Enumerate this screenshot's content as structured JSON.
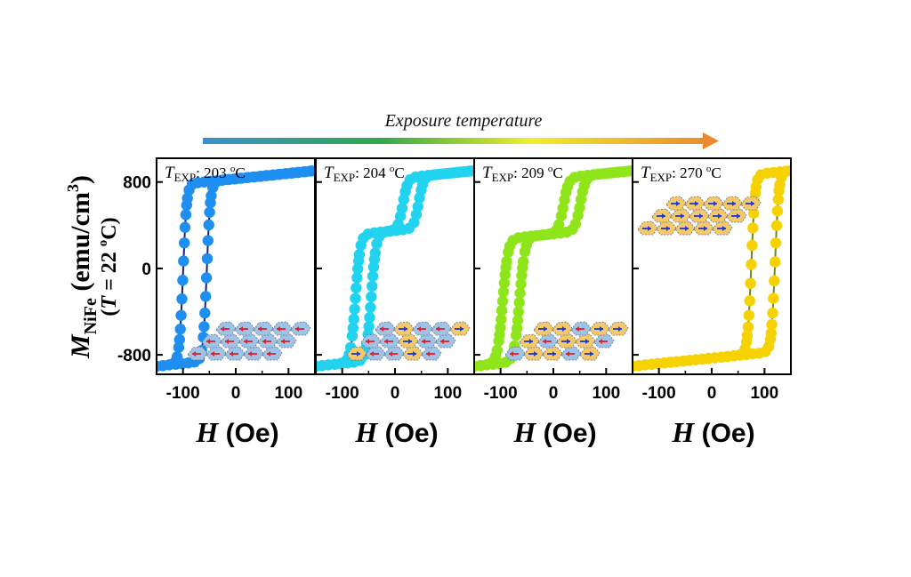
{
  "figure": {
    "arrow_label": "Exposure temperature",
    "ylabel_main": "M",
    "ylabel_sub": "NiFe",
    "ylabel_units": "(emu/cm",
    "ylabel_units_sup": "3",
    "ylabel_units_close": ")",
    "ylabel_cond_open": "(",
    "ylabel_cond_T": "T",
    "ylabel_cond_mid": " = 22 ",
    "ylabel_cond_deg": "o",
    "ylabel_cond_unit": "C)",
    "xlabel_var": "H",
    "xlabel_unit": " (Oe)",
    "colors": {
      "arrow_start": "#3a8fd0",
      "arrow_mid1": "#2fa84a",
      "arrow_mid2": "#f2ee2a",
      "arrow_end": "#e98a2e",
      "spin_up_red": "#e0202a",
      "spin_blue": "#1c3ad8",
      "grain_blue": "#9fc3e6",
      "grain_orange": "#f5c86a"
    }
  },
  "chart_data": [
    {
      "type": "scatter",
      "panel_label_T": "T",
      "panel_label_sub": "EXP",
      "panel_label_value": ": 203 ",
      "panel_label_deg": "o",
      "panel_label_unit": "C",
      "color": "#1e8ff0",
      "line_color": "#14207a",
      "xlim": [
        -150,
        150
      ],
      "ylim": [
        -980,
        1020
      ],
      "x_ticks": [
        -100,
        0,
        100
      ],
      "x_tick_labels": [
        "-100",
        "0",
        "100"
      ],
      "y_ticks": [
        800,
        0,
        -800
      ],
      "y_tick_labels": [
        "800",
        "0",
        "-800"
      ],
      "loop": {
        "kind": "single",
        "Hc_up": -55,
        "Hc_down": -100,
        "w": 7,
        "ms": 830,
        "slope": 0.5,
        "sat_low": -830
      },
      "inset": "left-red",
      "inset_position": "bottom-right"
    },
    {
      "type": "scatter",
      "panel_label_T": "T",
      "panel_label_sub": "EXP",
      "panel_label_value": ": 204 ",
      "panel_label_deg": "o",
      "panel_label_unit": "C",
      "color": "#22d3f0",
      "line_color": "#14207a",
      "xlim": [
        -150,
        150
      ],
      "ylim": [
        -980,
        1020
      ],
      "x_ticks": [
        -100,
        0,
        100
      ],
      "x_tick_labels": [
        "-100",
        "0",
        "100"
      ],
      "y_ticks": [
        800,
        0,
        -800
      ],
      "loop": {
        "kind": "double",
        "centers": [
          -60,
          30
        ],
        "w": 9,
        "width": 30,
        "plateau": 350,
        "ms": 830,
        "slope": 0.5
      },
      "inset": "mixed",
      "inset_position": "bottom-right"
    },
    {
      "type": "scatter",
      "panel_label_T": "T",
      "panel_label_sub": "EXP",
      "panel_label_value": ": 209 ",
      "panel_label_deg": "o",
      "panel_label_unit": "C",
      "color": "#8ee61a",
      "line_color": "#14207a",
      "xlim": [
        -150,
        150
      ],
      "ylim": [
        -980,
        1020
      ],
      "x_ticks": [
        -100,
        0,
        100
      ],
      "x_tick_labels": [
        "-100",
        "0",
        "100"
      ],
      "y_ticks": [
        800,
        0,
        -800
      ],
      "loop": {
        "kind": "double",
        "centers": [
          -80,
          35
        ],
        "w": 10,
        "width": 32,
        "plateau": 320,
        "ms": 830,
        "slope": 0.5
      },
      "inset": "mixed-right",
      "inset_position": "bottom-right"
    },
    {
      "type": "scatter",
      "panel_label_T": "T",
      "panel_label_sub": "EXP",
      "panel_label_value": ": 270 ",
      "panel_label_deg": "o",
      "panel_label_unit": "C",
      "color": "#f5d200",
      "line_color": "#6a8a20",
      "xlim": [
        -150,
        150
      ],
      "ylim": [
        -980,
        1020
      ],
      "x_ticks": [
        -100,
        0,
        100
      ],
      "x_tick_labels": [
        "-100",
        "0",
        "100"
      ],
      "y_ticks": [
        800,
        0,
        -800
      ],
      "loop": {
        "kind": "single",
        "Hc_up": 120,
        "Hc_down": 75,
        "w": 7,
        "ms": 830,
        "slope": 0.5
      },
      "inset": "right-blue",
      "inset_position": "top-left"
    }
  ]
}
